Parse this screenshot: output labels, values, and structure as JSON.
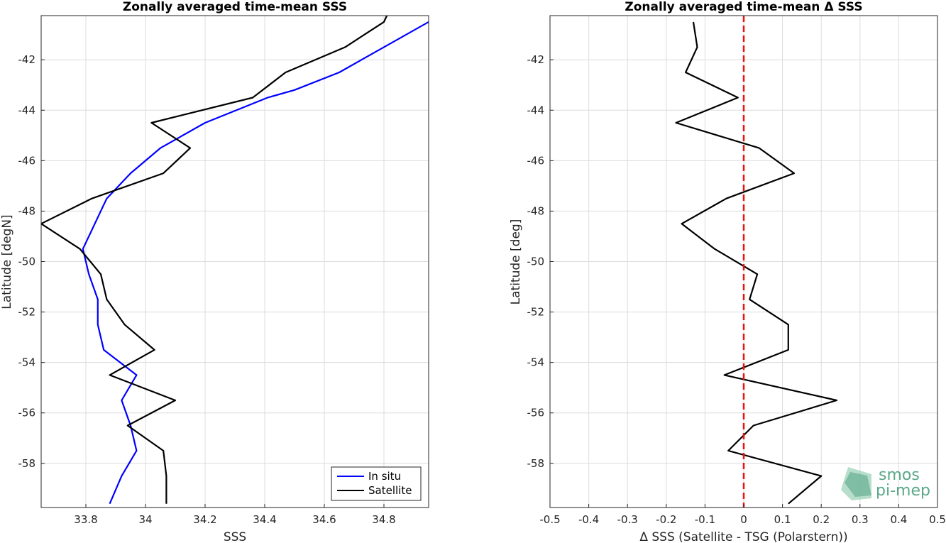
{
  "chart_data": [
    {
      "type": "line",
      "title": "Zonally averaged time-mean SSS",
      "xlabel": "SSS",
      "ylabel": "Latitude [degN]",
      "xlim": [
        33.65,
        34.95
      ],
      "ylim": [
        -59.75,
        -40.25
      ],
      "xticks": [
        33.8,
        34,
        34.2,
        34.4,
        34.6,
        34.8
      ],
      "xticklabels": [
        "33.8",
        "34",
        "34.2",
        "34.4",
        "34.6",
        "34.8"
      ],
      "yticks": [
        -58,
        -56,
        -54,
        -52,
        -50,
        -48,
        -46,
        -44,
        -42
      ],
      "yticklabels": [
        "-58",
        "-56",
        "-54",
        "-52",
        "-50",
        "-48",
        "-46",
        "-44",
        "-42"
      ],
      "grid": true,
      "legend": "bottom-right",
      "series": [
        {
          "name": "In situ",
          "color": "#0000ff",
          "points": [
            [
              34.95,
              -40.5
            ],
            [
              34.8,
              -41.5
            ],
            [
              34.65,
              -42.5
            ],
            [
              34.5,
              -43.2
            ],
            [
              34.41,
              -43.5
            ],
            [
              34.2,
              -44.5
            ],
            [
              34.05,
              -45.5
            ],
            [
              33.95,
              -46.5
            ],
            [
              33.87,
              -47.5
            ],
            [
              33.83,
              -48.5
            ],
            [
              33.79,
              -49.5
            ],
            [
              33.81,
              -50.5
            ],
            [
              33.84,
              -51.5
            ],
            [
              33.84,
              -52.5
            ],
            [
              33.86,
              -53.5
            ],
            [
              33.97,
              -54.5
            ],
            [
              33.92,
              -55.5
            ],
            [
              33.95,
              -56.5
            ],
            [
              33.97,
              -57.5
            ],
            [
              33.92,
              -58.5
            ],
            [
              33.88,
              -59.6
            ]
          ]
        },
        {
          "name": "Satellite",
          "color": "#000000",
          "points": [
            [
              34.82,
              -40.0
            ],
            [
              34.8,
              -40.5
            ],
            [
              34.67,
              -41.5
            ],
            [
              34.47,
              -42.5
            ],
            [
              34.36,
              -43.5
            ],
            [
              34.02,
              -44.5
            ],
            [
              34.15,
              -45.5
            ],
            [
              34.06,
              -46.5
            ],
            [
              33.82,
              -47.5
            ],
            [
              33.65,
              -48.5
            ],
            [
              33.78,
              -49.5
            ],
            [
              33.85,
              -50.5
            ],
            [
              33.87,
              -51.5
            ],
            [
              33.93,
              -52.5
            ],
            [
              34.03,
              -53.5
            ],
            [
              33.88,
              -54.5
            ],
            [
              34.1,
              -55.5
            ],
            [
              33.94,
              -56.5
            ],
            [
              34.06,
              -57.5
            ],
            [
              34.07,
              -58.5
            ],
            [
              34.07,
              -59.6
            ]
          ]
        }
      ]
    },
    {
      "type": "line",
      "title": "Zonally averaged time-mean Δ SSS",
      "xlabel": "Δ SSS (Satellite - TSG (Polarstern))",
      "ylabel": "Latitude [deg]",
      "xlim": [
        -0.5,
        0.5
      ],
      "ylim": [
        -59.75,
        -40.25
      ],
      "xticks": [
        -0.5,
        -0.4,
        -0.3,
        -0.2,
        -0.1,
        0,
        0.1,
        0.2,
        0.3,
        0.4,
        0.5
      ],
      "xticklabels": [
        "-0.5",
        "-0.4",
        "-0.3",
        "-0.2",
        "-0.1",
        "0",
        "0.1",
        "0.2",
        "0.3",
        "0.4",
        "0.5"
      ],
      "yticks": [
        -58,
        -56,
        -54,
        -52,
        -50,
        -48,
        -46,
        -44,
        -42
      ],
      "yticklabels": [
        "-58",
        "-56",
        "-54",
        "-52",
        "-50",
        "-48",
        "-46",
        "-44",
        "-42"
      ],
      "grid": true,
      "reference_line": {
        "x": 0,
        "color": "#ee1111",
        "style": "dashed"
      },
      "series": [
        {
          "color": "#000000",
          "points": [
            [
              -0.13,
              -40.5
            ],
            [
              -0.12,
              -41.5
            ],
            [
              -0.15,
              -42.5
            ],
            [
              -0.015,
              -43.5
            ],
            [
              -0.175,
              -44.5
            ],
            [
              0.04,
              -45.5
            ],
            [
              0.13,
              -46.5
            ],
            [
              -0.045,
              -47.5
            ],
            [
              -0.16,
              -48.5
            ],
            [
              -0.075,
              -49.5
            ],
            [
              0.035,
              -50.5
            ],
            [
              0.015,
              -51.5
            ],
            [
              0.115,
              -52.5
            ],
            [
              0.115,
              -53.5
            ],
            [
              -0.05,
              -54.5
            ],
            [
              0.24,
              -55.5
            ],
            [
              0.025,
              -56.5
            ],
            [
              -0.04,
              -57.5
            ],
            [
              0.2,
              -58.5
            ],
            [
              0.115,
              -59.6
            ]
          ]
        }
      ]
    }
  ],
  "logo": {
    "line1": "smos",
    "line2": "pi-mep",
    "color": "#5aa88a"
  }
}
